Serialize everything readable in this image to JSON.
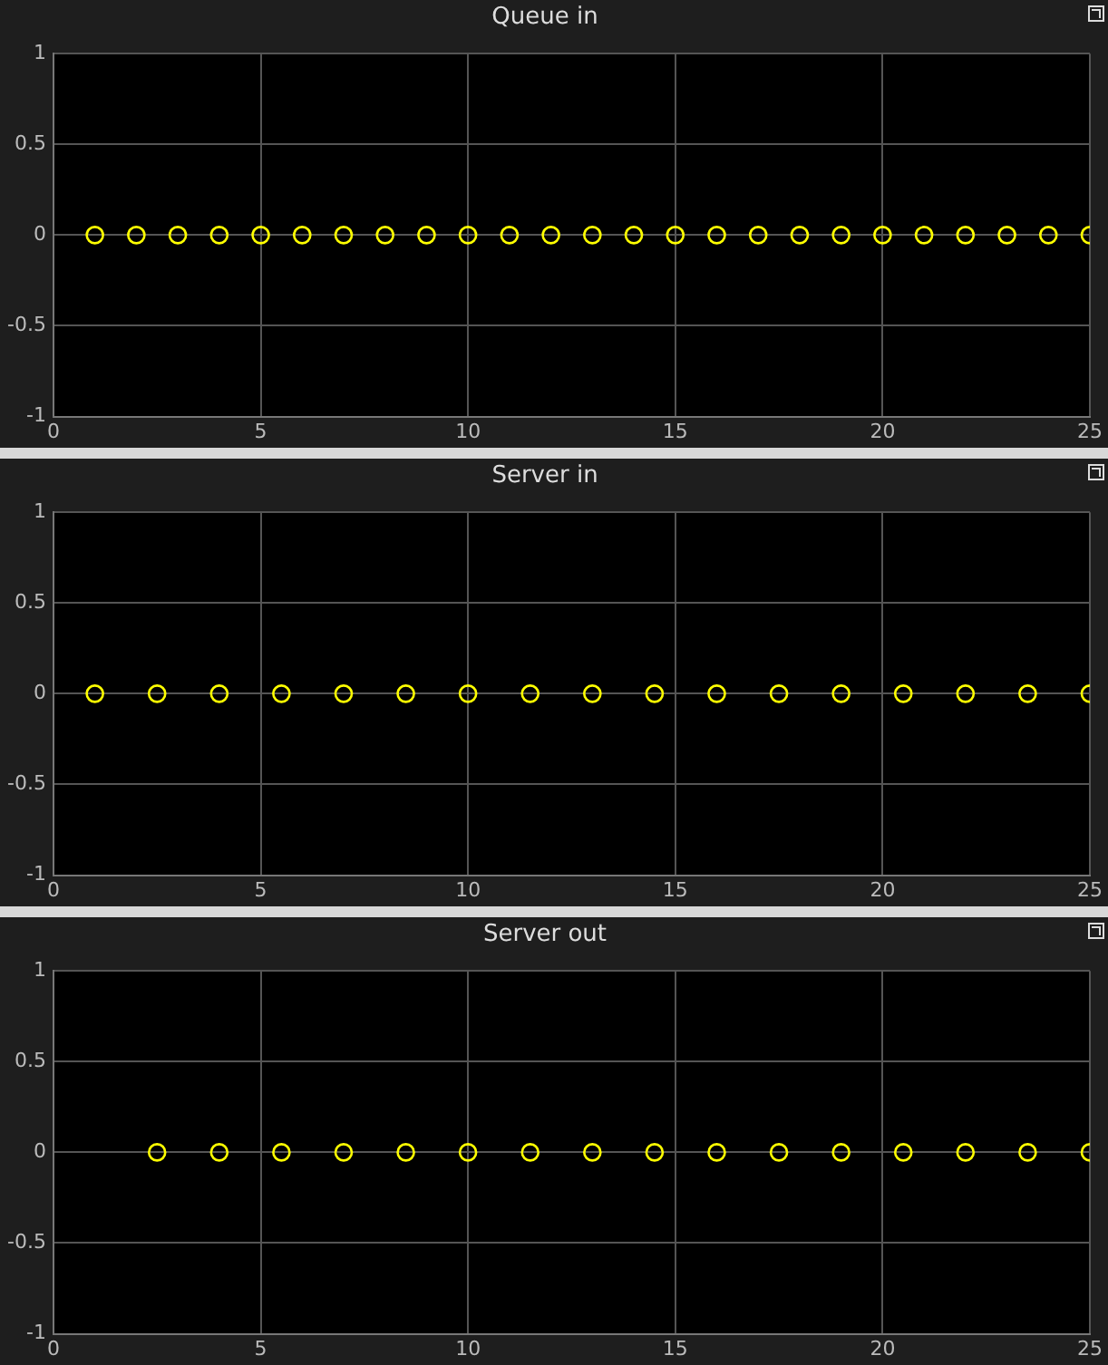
{
  "chart_data": [
    {
      "type": "scatter",
      "title": "Queue in",
      "x": [
        1,
        2,
        3,
        4,
        5,
        6,
        7,
        8,
        9,
        10,
        11,
        12,
        13,
        14,
        15,
        16,
        17,
        18,
        19,
        20,
        21,
        22,
        23,
        24,
        25
      ],
      "values": [
        0,
        0,
        0,
        0,
        0,
        0,
        0,
        0,
        0,
        0,
        0,
        0,
        0,
        0,
        0,
        0,
        0,
        0,
        0,
        0,
        0,
        0,
        0,
        0,
        0
      ],
      "color": "#ffff00",
      "xlim": [
        0,
        25
      ],
      "xticks": [
        0,
        5,
        10,
        15,
        20,
        25
      ],
      "ylim": [
        -1,
        1
      ],
      "yticks": [
        -1,
        -0.5,
        0,
        0.5,
        1
      ],
      "grid": true,
      "marker": "circle"
    },
    {
      "type": "scatter",
      "title": "Server in",
      "x": [
        1,
        2.5,
        4,
        5.5,
        7,
        8.5,
        10,
        11.5,
        13,
        14.5,
        16,
        17.5,
        19,
        20.5,
        22,
        23.5,
        25
      ],
      "values": [
        0,
        0,
        0,
        0,
        0,
        0,
        0,
        0,
        0,
        0,
        0,
        0,
        0,
        0,
        0,
        0,
        0
      ],
      "color": "#ffff00",
      "xlim": [
        0,
        25
      ],
      "xticks": [
        0,
        5,
        10,
        15,
        20,
        25
      ],
      "ylim": [
        -1,
        1
      ],
      "yticks": [
        -1,
        -0.5,
        0,
        0.5,
        1
      ],
      "grid": true,
      "marker": "circle"
    },
    {
      "type": "scatter",
      "title": "Server out",
      "x": [
        2.5,
        4,
        5.5,
        7,
        8.5,
        10,
        11.5,
        13,
        14.5,
        16,
        17.5,
        19,
        20.5,
        22,
        23.5,
        25
      ],
      "values": [
        0,
        0,
        0,
        0,
        0,
        0,
        0,
        0,
        0,
        0,
        0,
        0,
        0,
        0,
        0,
        0
      ],
      "color": "#ffff00",
      "xlim": [
        0,
        25
      ],
      "xticks": [
        0,
        5,
        10,
        15,
        20,
        25
      ],
      "ylim": [
        -1,
        1
      ],
      "yticks": [
        -1,
        -0.5,
        0,
        0.5,
        1
      ],
      "grid": true,
      "marker": "circle"
    }
  ]
}
